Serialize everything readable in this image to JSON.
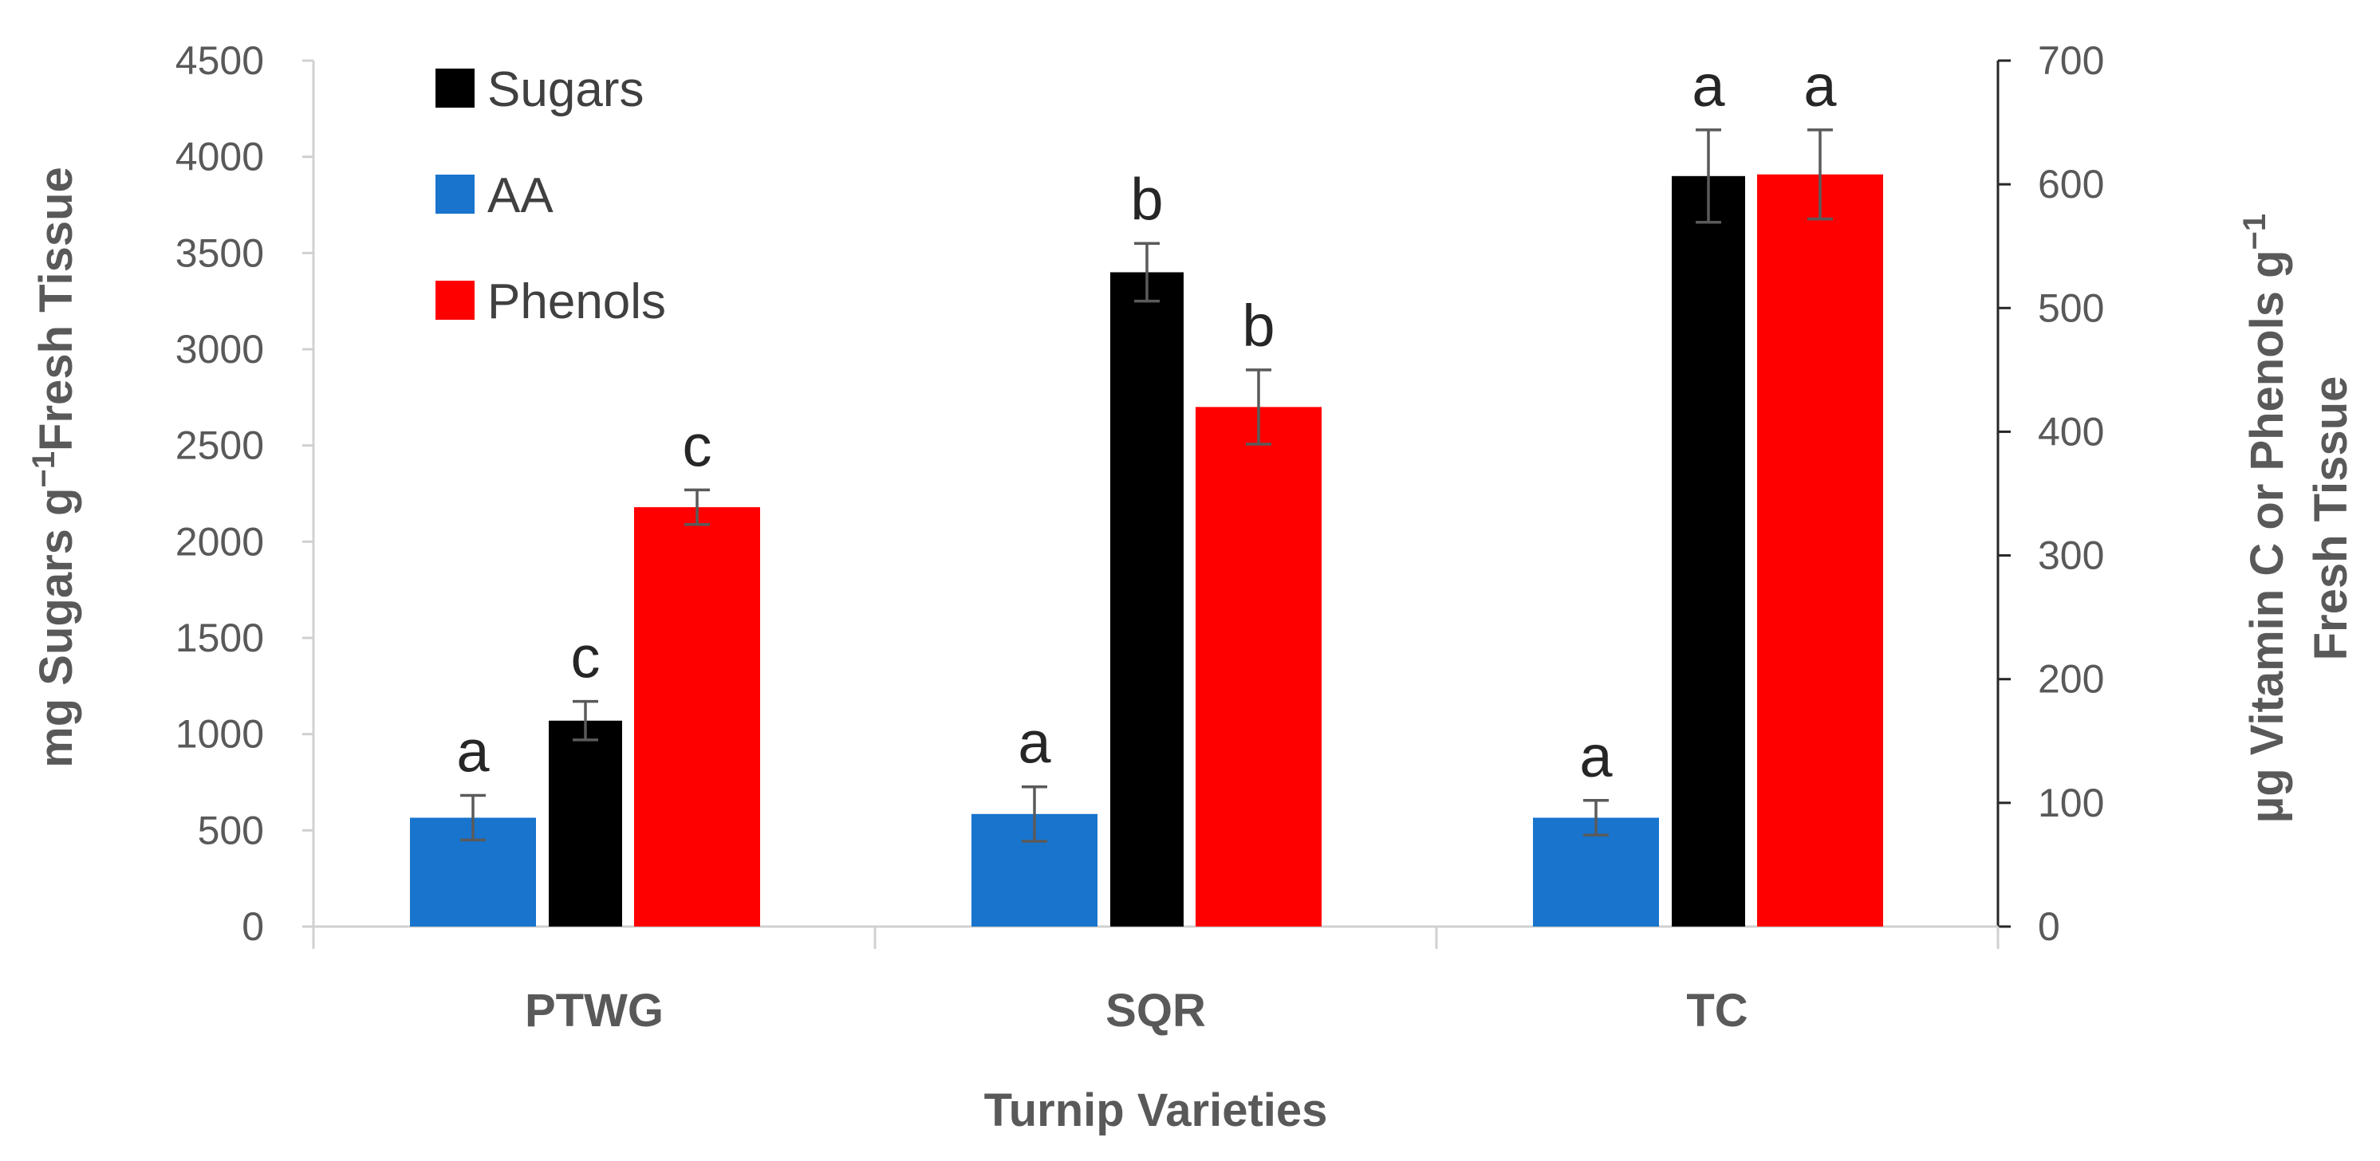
{
  "chart_data": {
    "type": "bar",
    "categories": [
      "PTWG",
      "SQR",
      "TC"
    ],
    "xlabel": "Turnip Varieties",
    "ylabel_left": {
      "main": "mg Sugars g",
      "sup": "−1",
      "tail": "Fresh Tissue"
    },
    "ylabel_right": {
      "line1": "µg Vitamin C or Phenols g",
      "sup": "−1",
      "line2": "Fresh Tissue"
    },
    "y_left": {
      "min": 0,
      "max": 4500,
      "step": 500,
      "ticks": [
        "0",
        "500",
        "1000",
        "1500",
        "2000",
        "2500",
        "3000",
        "3500",
        "4000",
        "4500"
      ]
    },
    "y_right": {
      "min": 0,
      "max": 700,
      "step": 100,
      "ticks": [
        "0",
        "100",
        "200",
        "300",
        "400",
        "500",
        "600",
        "700"
      ]
    },
    "series": [
      {
        "name": "Sugars",
        "color": "#000000",
        "axis": "left",
        "z": 1,
        "values": [
          1070,
          3400,
          3900
        ],
        "errors": [
          100,
          150,
          240
        ],
        "labels": [
          "c",
          "b",
          "a"
        ]
      },
      {
        "name": "AA",
        "color": "#1874CD",
        "axis": "right",
        "z": 0,
        "values": [
          88,
          91,
          88
        ],
        "errors": [
          18,
          22,
          14
        ],
        "labels": [
          "a",
          "a",
          "a"
        ]
      },
      {
        "name": "Phenols",
        "color": "#FF0000",
        "axis": "right",
        "z": 2,
        "values": [
          339,
          420,
          608
        ],
        "errors": [
          14,
          30,
          36
        ],
        "labels": [
          "c",
          "b",
          "a"
        ]
      }
    ],
    "legend_position": "top-left",
    "grid": false
  }
}
